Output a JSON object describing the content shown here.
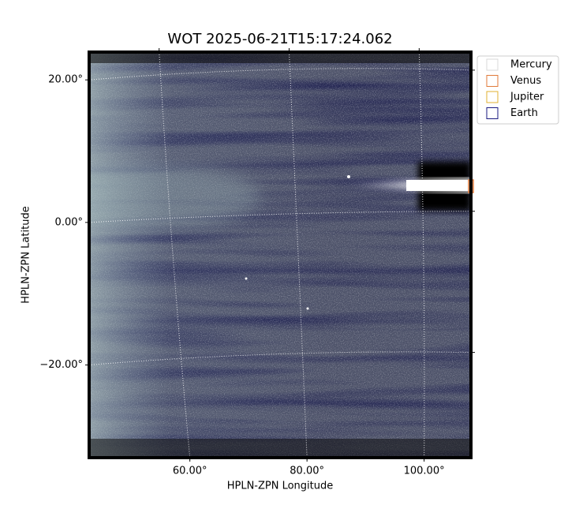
{
  "chart_data": {
    "type": "image",
    "title": "WOT 2025-06-21T15:17:24.062",
    "x_label": "HPLN-ZPN Longitude",
    "y_label": "HPLN-ZPN Latitude",
    "xlim": [
      42.8,
      108
    ],
    "ylim": [
      -33,
      23.9
    ],
    "xticks": [
      {
        "value": 60,
        "label": "60.00°"
      },
      {
        "value": 80,
        "label": "80.00°"
      },
      {
        "value": 100,
        "label": "100.00°"
      }
    ],
    "yticks": [
      {
        "value": -20,
        "label": "−20.00°"
      },
      {
        "value": 0,
        "label": "0.00°"
      },
      {
        "value": 20,
        "label": "20.00°"
      }
    ],
    "grid": true,
    "legend": "upper right outside",
    "markers": [
      {
        "name": "Mercury",
        "color": "#d9d9d9"
      },
      {
        "name": "Venus",
        "color": "#e07a3a"
      },
      {
        "name": "Jupiter",
        "color": "#e0b030"
      },
      {
        "name": "Earth",
        "color": "#1a1a80"
      }
    ]
  }
}
